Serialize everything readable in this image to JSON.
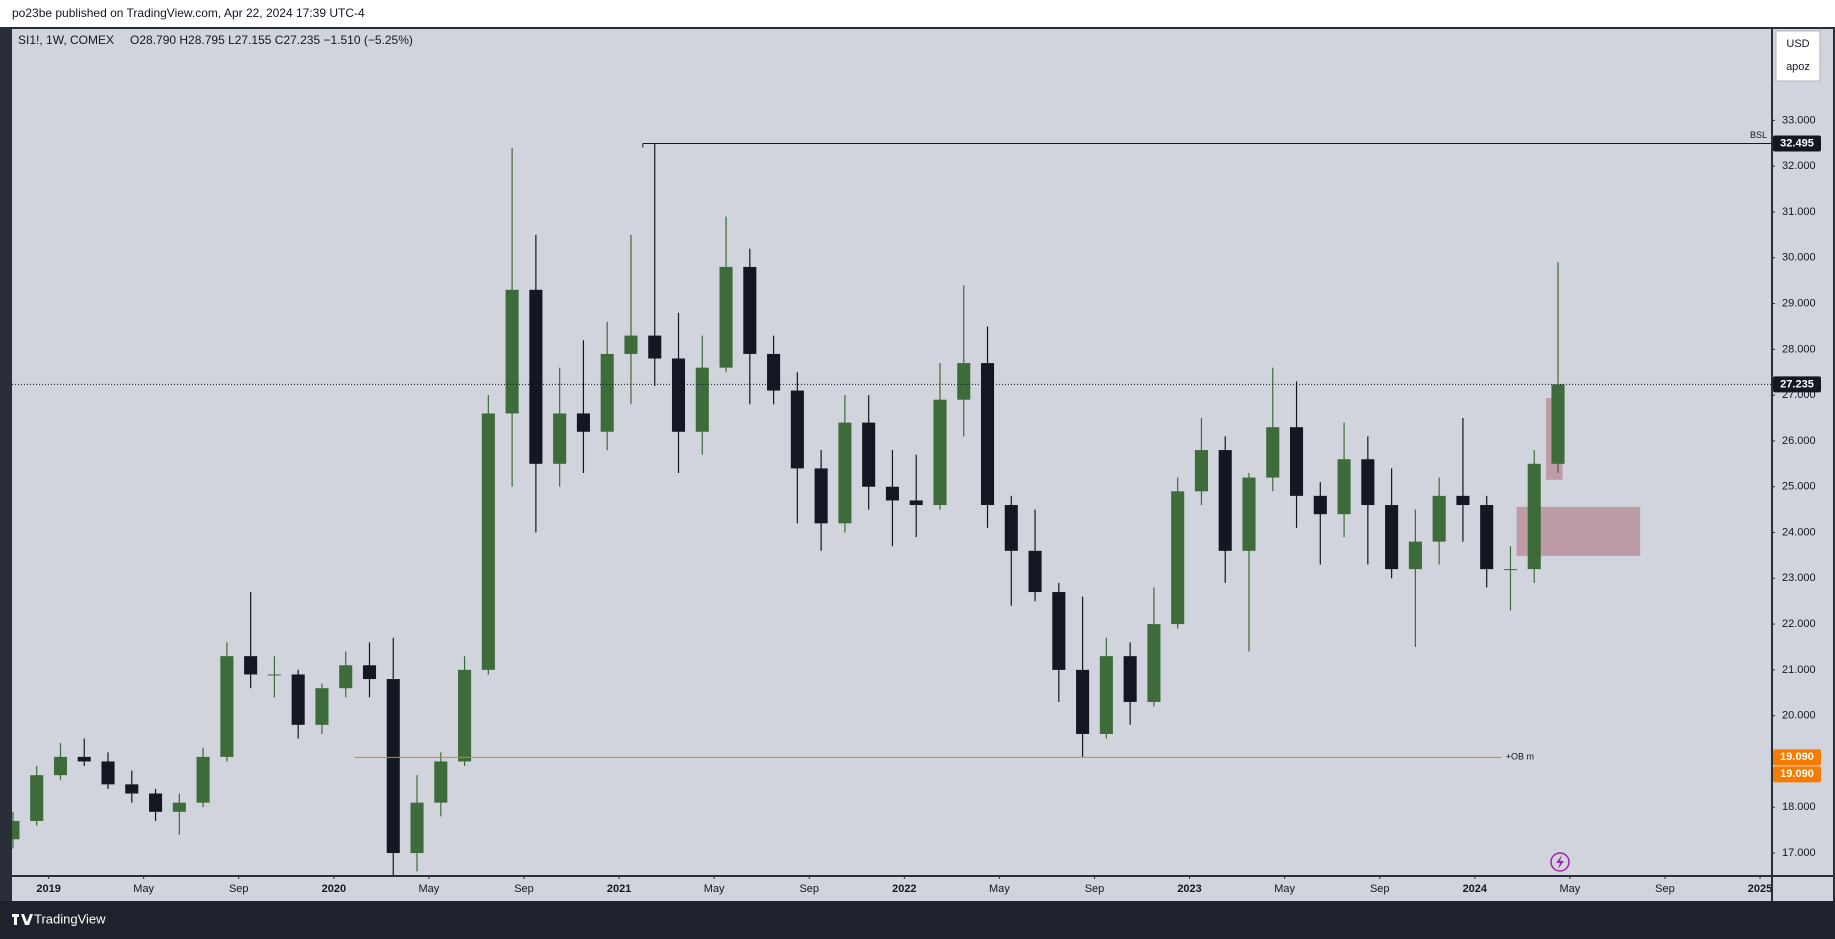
{
  "header": {
    "publisher": "po23be published on TradingView.com, Apr 22, 2024 17:39 UTC-4"
  },
  "footer": {
    "brand": "TradingView"
  },
  "scale_box": {
    "currency": "USD",
    "user": "apoz"
  },
  "chart_data": {
    "type": "candlestick",
    "symbol": "SI1!, 1W, COMEX",
    "ohlc_text": "O28.790 H28.795 L27.155 C27.235 −1.510 (−5.25%)",
    "up_color": "#3d6b39",
    "down_color": "#131722",
    "grid": false,
    "x": [
      "2018-11",
      "2018-12",
      "2019-01",
      "2019-02",
      "2019-03",
      "2019-04",
      "2019-05",
      "2019-06",
      "2019-07",
      "2019-08",
      "2019-09",
      "2019-10",
      "2019-11",
      "2019-12",
      "2020-01",
      "2020-02",
      "2020-03",
      "2020-04",
      "2020-05",
      "2020-06",
      "2020-07",
      "2020-08",
      "2020-09",
      "2020-10",
      "2020-11",
      "2020-12",
      "2021-01",
      "2021-02",
      "2021-03",
      "2021-04",
      "2021-05",
      "2021-06",
      "2021-07",
      "2021-08",
      "2021-09",
      "2021-10",
      "2021-11",
      "2021-12",
      "2022-01",
      "2022-02",
      "2022-03",
      "2022-04",
      "2022-05",
      "2022-06",
      "2022-07",
      "2022-08",
      "2022-09",
      "2022-10",
      "2022-11",
      "2022-12",
      "2023-01",
      "2023-02",
      "2023-03",
      "2023-04",
      "2023-05",
      "2023-06",
      "2023-07",
      "2023-08",
      "2023-09",
      "2023-10",
      "2023-11",
      "2023-12",
      "2024-01",
      "2024-02",
      "2024-03",
      "2024-04"
    ],
    "open": [
      17.3,
      17.7,
      18.7,
      19.1,
      19.0,
      18.5,
      18.3,
      17.9,
      18.1,
      19.1,
      21.3,
      20.9,
      20.9,
      19.8,
      20.6,
      21.1,
      20.8,
      17.0,
      18.1,
      19.0,
      21.0,
      26.6,
      29.3,
      25.5,
      26.6,
      26.2,
      27.9,
      28.3,
      27.8,
      26.2,
      27.6,
      29.8,
      27.9,
      27.1,
      25.4,
      24.2,
      26.4,
      25.0,
      24.7,
      24.6,
      26.9,
      27.7,
      24.6,
      23.6,
      22.7,
      21.0,
      19.6,
      21.3,
      20.3,
      22.0,
      24.9,
      25.8,
      23.6,
      25.2,
      26.3,
      24.8,
      24.4,
      25.6,
      24.6,
      23.2,
      23.8,
      24.8,
      24.6,
      23.2,
      23.2,
      25.5
    ],
    "high": [
      17.9,
      18.9,
      19.4,
      19.5,
      19.2,
      18.8,
      18.4,
      18.3,
      19.3,
      21.6,
      22.7,
      21.3,
      21.0,
      20.7,
      21.4,
      21.6,
      21.7,
      18.7,
      19.2,
      21.3,
      27.0,
      32.4,
      30.5,
      27.6,
      28.2,
      28.6,
      30.5,
      32.5,
      28.8,
      28.3,
      30.9,
      30.2,
      28.3,
      27.5,
      25.8,
      27.0,
      27.0,
      25.8,
      25.7,
      27.7,
      29.4,
      28.5,
      24.8,
      24.5,
      22.9,
      22.6,
      21.7,
      21.6,
      22.8,
      25.2,
      26.5,
      26.1,
      25.3,
      27.6,
      27.3,
      25.1,
      26.4,
      26.1,
      25.4,
      24.5,
      25.2,
      26.5,
      24.8,
      23.7,
      25.8,
      29.9
    ],
    "low": [
      17.1,
      17.6,
      18.6,
      18.9,
      18.4,
      18.1,
      17.7,
      17.4,
      18.0,
      19.0,
      20.6,
      20.4,
      19.5,
      19.6,
      20.4,
      20.4,
      16.0,
      16.6,
      17.8,
      18.9,
      20.9,
      25.0,
      24.0,
      25.0,
      25.3,
      25.8,
      26.8,
      27.2,
      25.3,
      25.7,
      27.5,
      26.8,
      26.8,
      24.2,
      23.6,
      24.0,
      24.5,
      23.7,
      23.9,
      24.5,
      26.1,
      24.1,
      22.4,
      22.5,
      20.3,
      19.1,
      19.5,
      19.8,
      20.2,
      21.9,
      24.6,
      22.9,
      21.4,
      24.9,
      24.1,
      23.3,
      23.9,
      23.3,
      23.0,
      21.5,
      23.3,
      23.8,
      22.8,
      22.3,
      22.9,
      25.3
    ],
    "close": [
      17.7,
      18.7,
      19.1,
      19.0,
      18.5,
      18.3,
      17.9,
      18.1,
      19.1,
      21.3,
      20.9,
      20.9,
      19.8,
      20.6,
      21.1,
      20.8,
      17.0,
      18.1,
      19.0,
      21.0,
      26.6,
      29.3,
      25.5,
      26.6,
      26.2,
      27.9,
      28.3,
      27.8,
      26.2,
      27.6,
      29.8,
      27.9,
      27.1,
      25.4,
      24.2,
      26.4,
      25.0,
      24.7,
      24.6,
      26.9,
      27.7,
      24.6,
      23.6,
      22.7,
      21.0,
      19.6,
      21.3,
      20.3,
      22.0,
      24.9,
      25.8,
      23.6,
      25.2,
      26.3,
      24.8,
      24.4,
      25.6,
      24.6,
      23.2,
      23.8,
      24.8,
      24.6,
      23.2,
      23.2,
      25.5,
      27.235
    ],
    "xlim": [
      "2018-11-15",
      "2025-01-15"
    ],
    "xticks": [
      {
        "value": "2019-01-01",
        "label": "2019"
      },
      {
        "value": "2019-05-01",
        "label": "May"
      },
      {
        "value": "2019-09-01",
        "label": "Sep"
      },
      {
        "value": "2020-01-01",
        "label": "2020"
      },
      {
        "value": "2020-05-01",
        "label": "May"
      },
      {
        "value": "2020-09-01",
        "label": "Sep"
      },
      {
        "value": "2021-01-01",
        "label": "2021"
      },
      {
        "value": "2021-05-01",
        "label": "May"
      },
      {
        "value": "2021-09-01",
        "label": "Sep"
      },
      {
        "value": "2022-01-01",
        "label": "2022"
      },
      {
        "value": "2022-05-01",
        "label": "May"
      },
      {
        "value": "2022-09-01",
        "label": "Sep"
      },
      {
        "value": "2023-01-01",
        "label": "2023"
      },
      {
        "value": "2023-05-01",
        "label": "May"
      },
      {
        "value": "2023-09-01",
        "label": "Sep"
      },
      {
        "value": "2024-01-01",
        "label": "2024"
      },
      {
        "value": "2024-05-01",
        "label": "May"
      },
      {
        "value": "2024-09-01",
        "label": "Sep"
      },
      {
        "value": "2025-01-01",
        "label": "2025"
      }
    ],
    "ylim": [
      16.52,
      35.04
    ],
    "yticks": [
      {
        "value": 17,
        "label": "17.000"
      },
      {
        "value": 18,
        "label": "18.000"
      },
      {
        "value": 19,
        "label": "19.000"
      },
      {
        "value": 20,
        "label": "20.000"
      },
      {
        "value": 21,
        "label": "21.000"
      },
      {
        "value": 22,
        "label": "22.000"
      },
      {
        "value": 23,
        "label": "23.000"
      },
      {
        "value": 24,
        "label": "24.000"
      },
      {
        "value": 25,
        "label": "25.000"
      },
      {
        "value": 26,
        "label": "26.000"
      },
      {
        "value": 27,
        "label": "27.000"
      },
      {
        "value": 28,
        "label": "28.000"
      },
      {
        "value": 29,
        "label": "29.000"
      },
      {
        "value": 30,
        "label": "30.000"
      },
      {
        "value": 31,
        "label": "31.000"
      },
      {
        "value": 32,
        "label": "32.000"
      },
      {
        "value": 33,
        "label": "33.000"
      }
    ],
    "last_price": {
      "value": 27.235,
      "label": "27.235"
    },
    "levels": [
      {
        "name": "BSL",
        "value": 32.495,
        "labels": [
          "32.495"
        ],
        "color": "#131722",
        "from": "2021-02-01"
      },
      {
        "name": "+OB m",
        "value": 19.09,
        "labels": [
          "19.090",
          "19.090"
        ],
        "color": "#f57c00",
        "from": "2020-01-27",
        "to": "2024-02-05"
      }
    ],
    "zones": [
      {
        "from": "2024-04-01",
        "to": "2024-04-22",
        "low": 25.15,
        "high": 26.94,
        "color": "#b58a97"
      },
      {
        "from": "2024-02-24",
        "to": "2024-07-30",
        "low": 23.49,
        "high": 24.56,
        "color": "#b58a97"
      }
    ]
  }
}
